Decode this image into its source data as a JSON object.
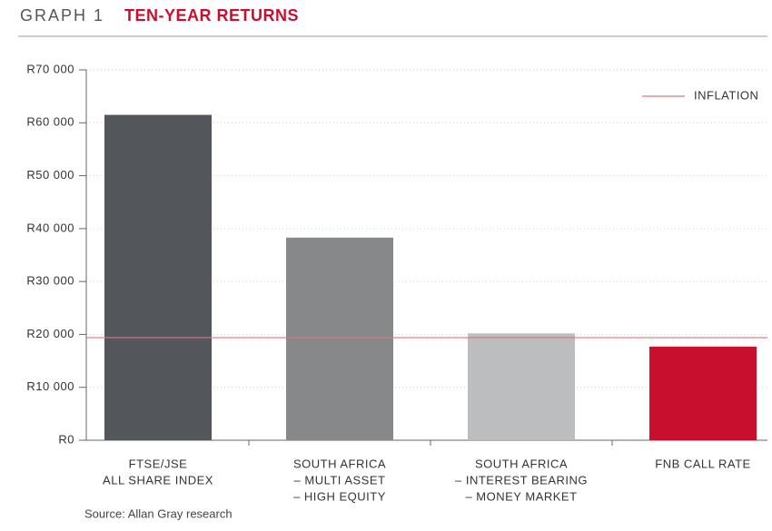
{
  "chart_data": {
    "type": "bar",
    "label": "GRAPH 1",
    "title": "TEN-YEAR RETURNS",
    "categories": [
      [
        "FTSE/JSE",
        "ALL SHARE INDEX"
      ],
      [
        "SOUTH AFRICA",
        "– MULTI ASSET",
        "– HIGH EQUITY"
      ],
      [
        "SOUTH AFRICA",
        "– INTEREST BEARING",
        "– MONEY MARKET"
      ],
      [
        "FNB CALL RATE"
      ]
    ],
    "values": [
      61500,
      38300,
      20200,
      17700
    ],
    "colors": [
      "#53565a",
      "#878889",
      "#bcbdbe",
      "#c8102e"
    ],
    "inflation": {
      "name": "INFLATION",
      "value": 19400,
      "color": "#e07380"
    },
    "legend": "upper right",
    "ylim": [
      0,
      70000
    ],
    "yticks": [
      {
        "value": 0,
        "label": "R0"
      },
      {
        "value": 10000,
        "label": "R10 000"
      },
      {
        "value": 20000,
        "label": "R20 000"
      },
      {
        "value": 30000,
        "label": "R30 000"
      },
      {
        "value": 40000,
        "label": "R40 000"
      },
      {
        "value": 50000,
        "label": "R50 000"
      },
      {
        "value": 60000,
        "label": "R60 000"
      },
      {
        "value": 70000,
        "label": "R70 000"
      }
    ],
    "grid": true,
    "source": "Source: Allan Gray research"
  }
}
